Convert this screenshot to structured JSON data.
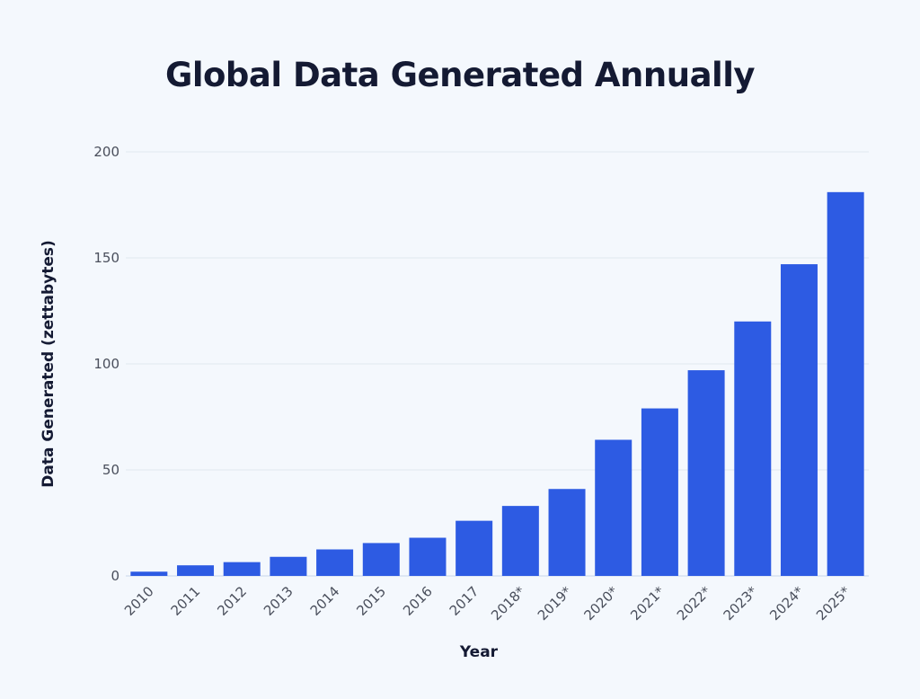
{
  "chart_data": {
    "type": "bar",
    "title": "Global Data Generated Annually",
    "xlabel": "Year",
    "ylabel": "Data Generated (zettabytes)",
    "categories": [
      "2010",
      "2011",
      "2012",
      "2013",
      "2014",
      "2015",
      "2016",
      "2017",
      "2018*",
      "2019*",
      "2020*",
      "2021*",
      "2022*",
      "2023*",
      "2024*",
      "2025*"
    ],
    "values": [
      2,
      5,
      6.5,
      9,
      12.5,
      15.5,
      18,
      26,
      33,
      41,
      64.2,
      79,
      97,
      120,
      147,
      181
    ],
    "ylim": [
      0,
      200
    ],
    "yticks": [
      "0",
      "50",
      "100",
      "150",
      "200"
    ],
    "grid": true,
    "legend": "none",
    "colors": {
      "bar": "#2d5be3",
      "background": "#f4f8fd",
      "grid": "#e1e7f0",
      "title": "#141a33"
    }
  }
}
